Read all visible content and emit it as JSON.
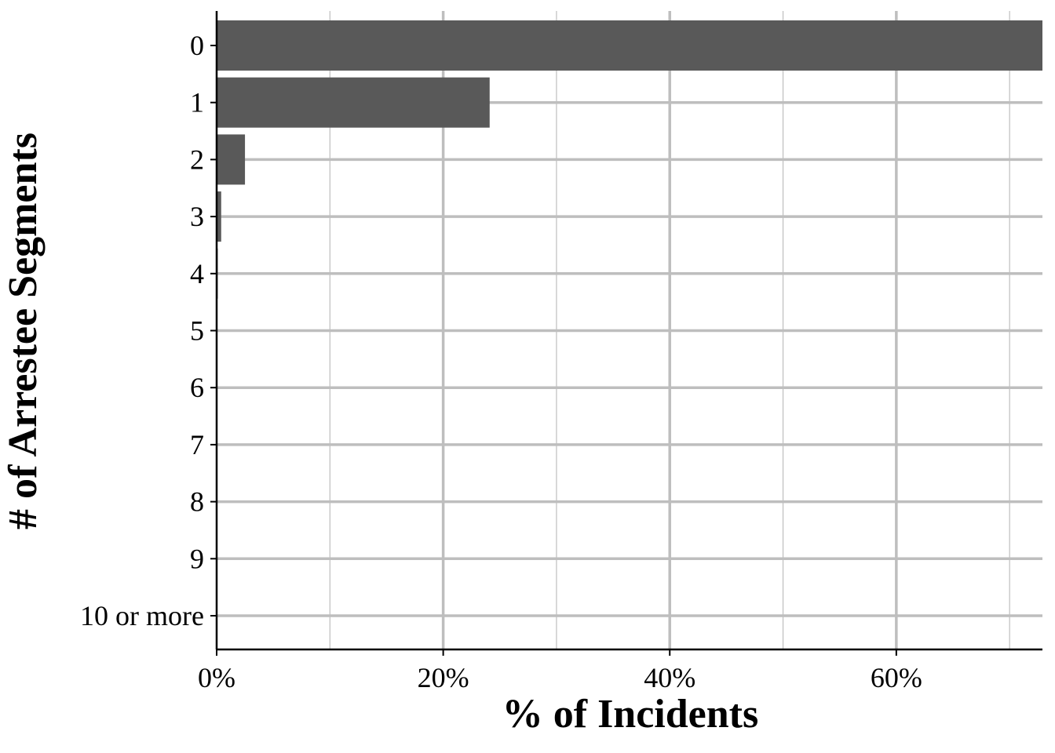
{
  "chart_data": {
    "type": "bar",
    "orientation": "horizontal",
    "xlabel": "% of Incidents",
    "ylabel": "# of Arrestee Segments",
    "categories": [
      "0",
      "1",
      "2",
      "3",
      "4",
      "5",
      "6",
      "7",
      "8",
      "9",
      "10 or more"
    ],
    "values": [
      72.9,
      24.1,
      2.5,
      0.4,
      0.1,
      0.02,
      0.01,
      0.005,
      0.003,
      0.002,
      0.004
    ],
    "xlim": [
      0,
      72.9
    ],
    "xticks": [
      0,
      20,
      40,
      60
    ],
    "xtick_labels": [
      "0%",
      "20%",
      "40%",
      "60%"
    ],
    "grid": true,
    "bar_color": "#595959",
    "grid_color": "#bebebe"
  }
}
